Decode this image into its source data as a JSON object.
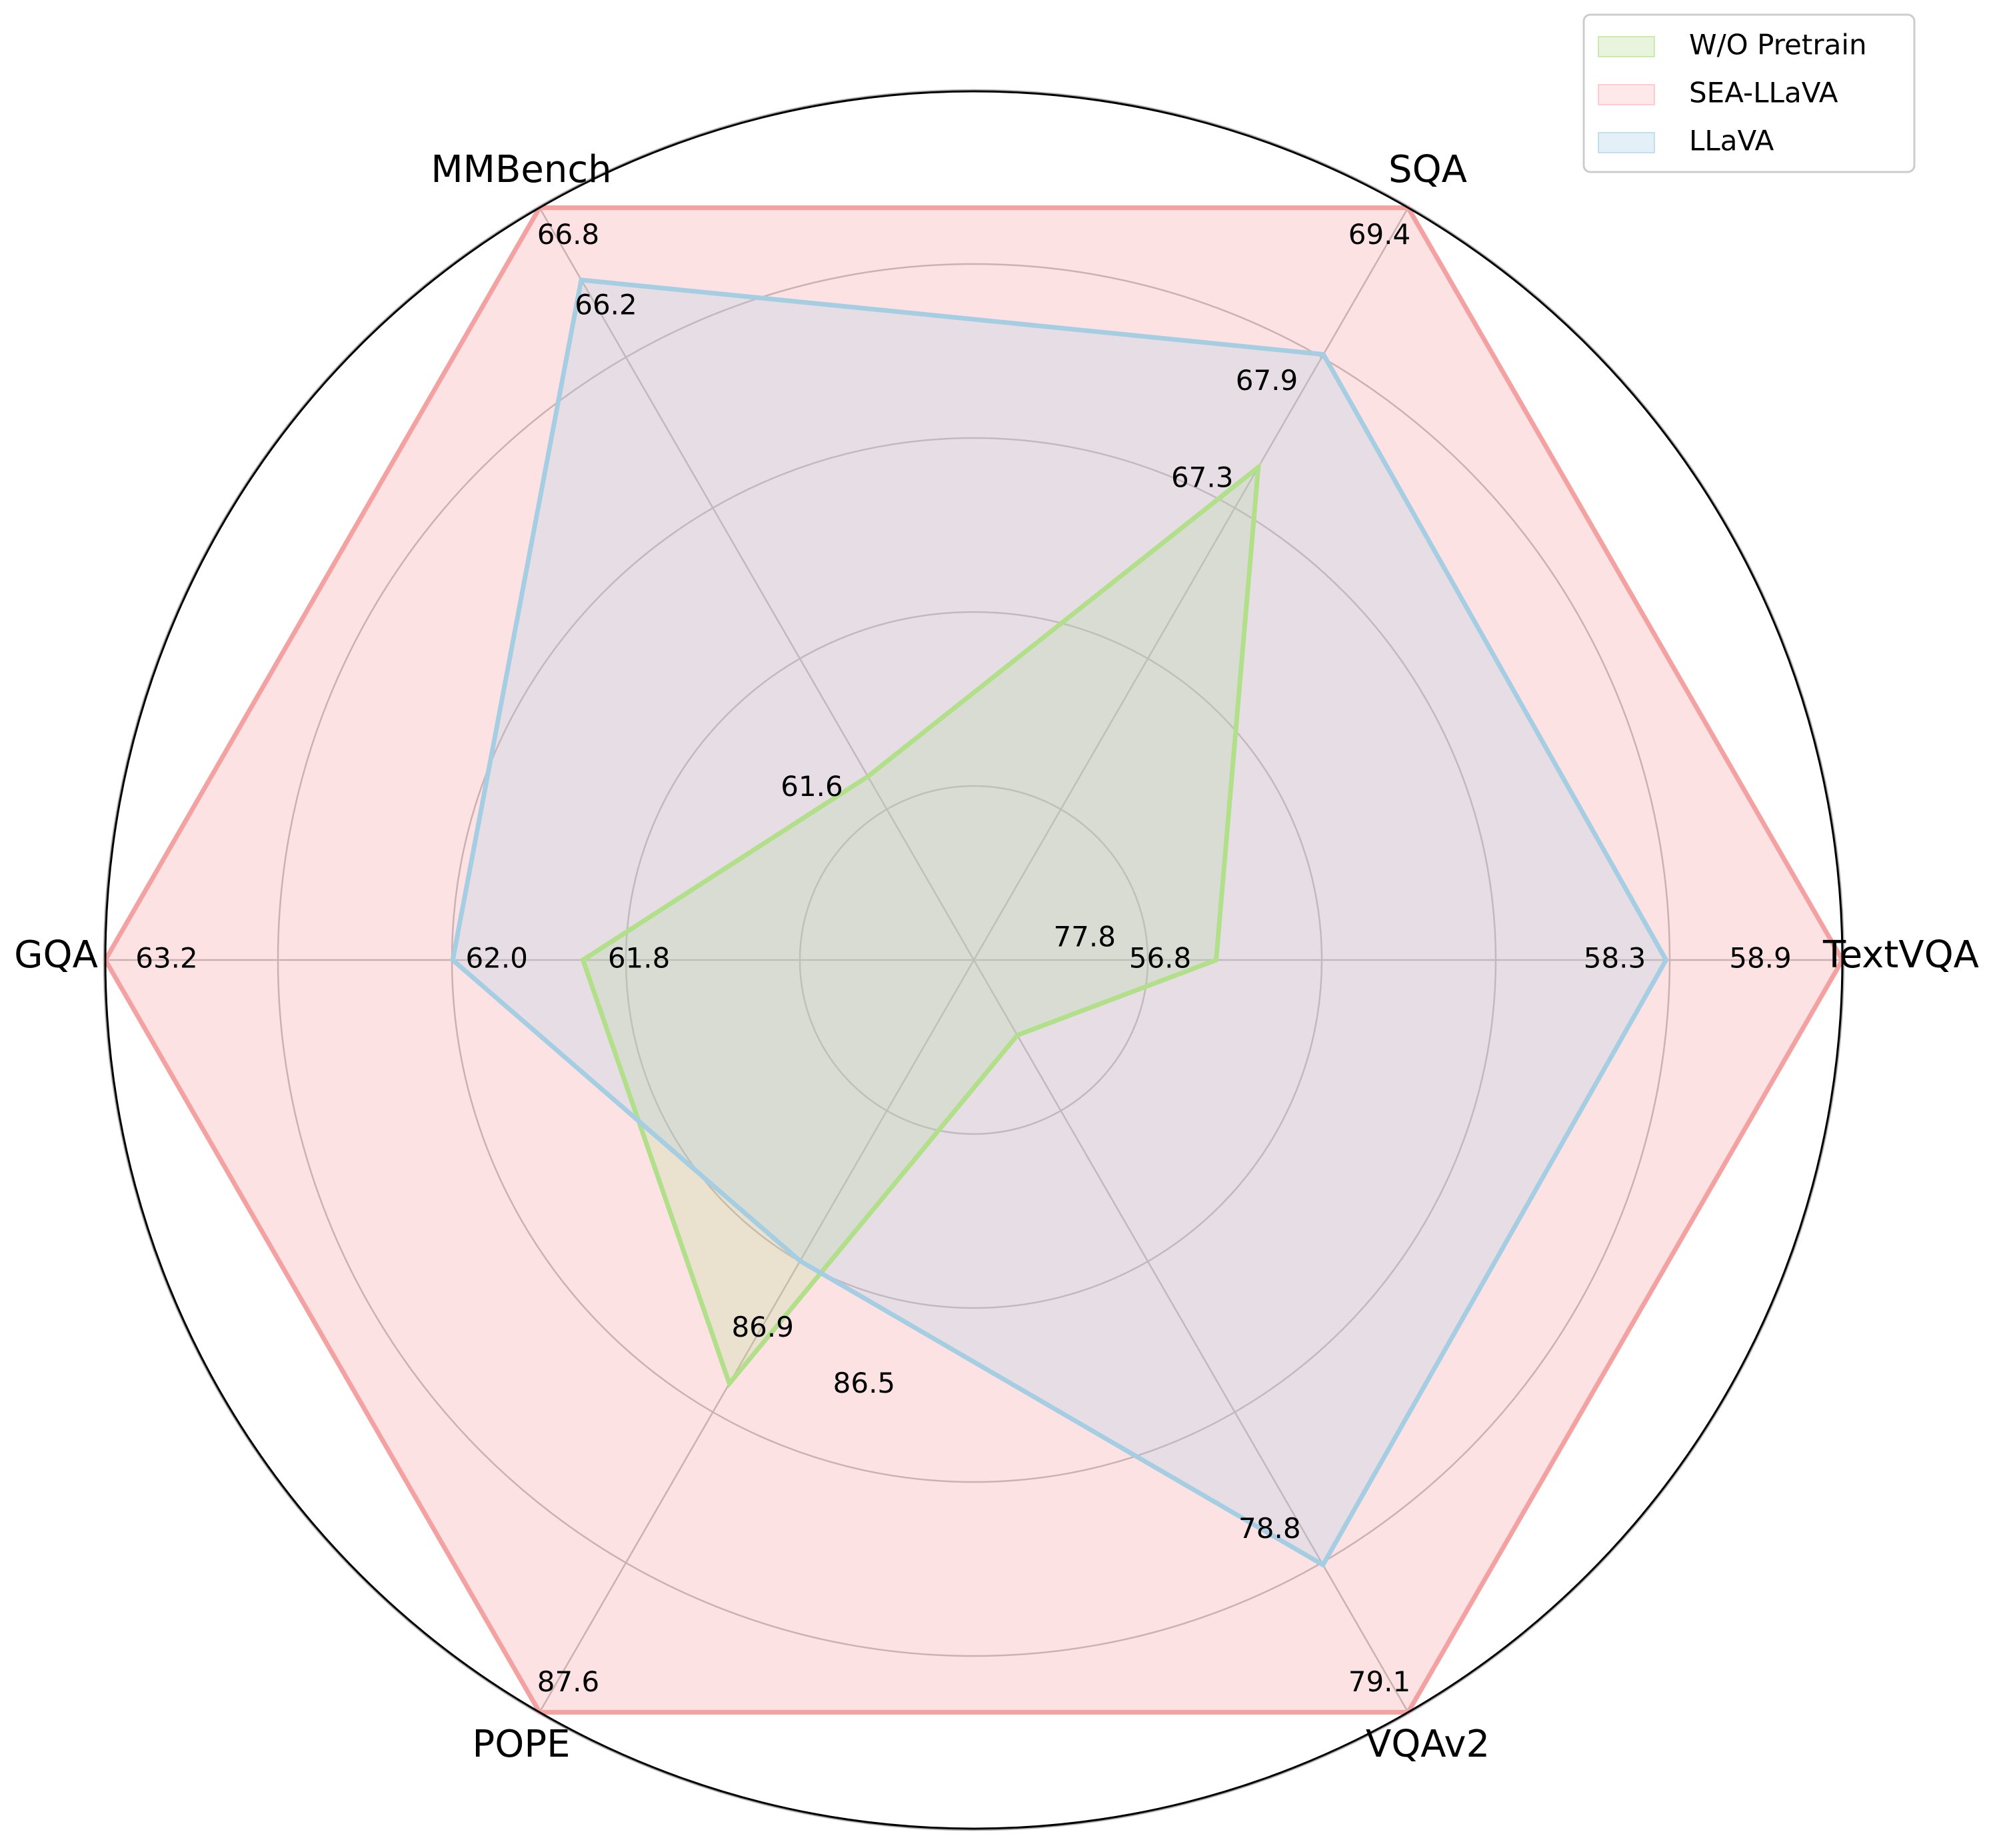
{
  "chart_data": {
    "type": "radar",
    "axes": [
      "TextVQA",
      "SQA",
      "MMBench",
      "GQA",
      "POPE",
      "VQAv2"
    ],
    "series": [
      {
        "name": "W/O Pretrain",
        "values": [
          56.8,
          67.3,
          61.6,
          61.8,
          86.9,
          77.8
        ],
        "labels": [
          "56.8",
          "67.3",
          "61.6",
          "61.8",
          "86.9",
          "77.8"
        ],
        "line_color": "#b2df8a",
        "fill_color": "#b2df8a"
      },
      {
        "name": "SEA-LLaVA",
        "values": [
          58.9,
          69.4,
          66.8,
          63.2,
          87.6,
          79.1
        ],
        "labels": [
          "58.9",
          "69.4",
          "66.8",
          "63.2",
          "87.6",
          "79.1"
        ],
        "line_color": "#f4a1a1",
        "fill_color": "#fbb4b9"
      },
      {
        "name": "LLaVA",
        "values": [
          58.3,
          67.9,
          66.2,
          62.0,
          86.5,
          78.8
        ],
        "labels": [
          "58.3",
          "67.9",
          "66.2",
          "62.0",
          "86.5",
          "78.8"
        ],
        "line_color": "#a6cee3",
        "fill_color": "#a6cee3"
      }
    ],
    "grid": true,
    "legend_position": "top-right"
  }
}
